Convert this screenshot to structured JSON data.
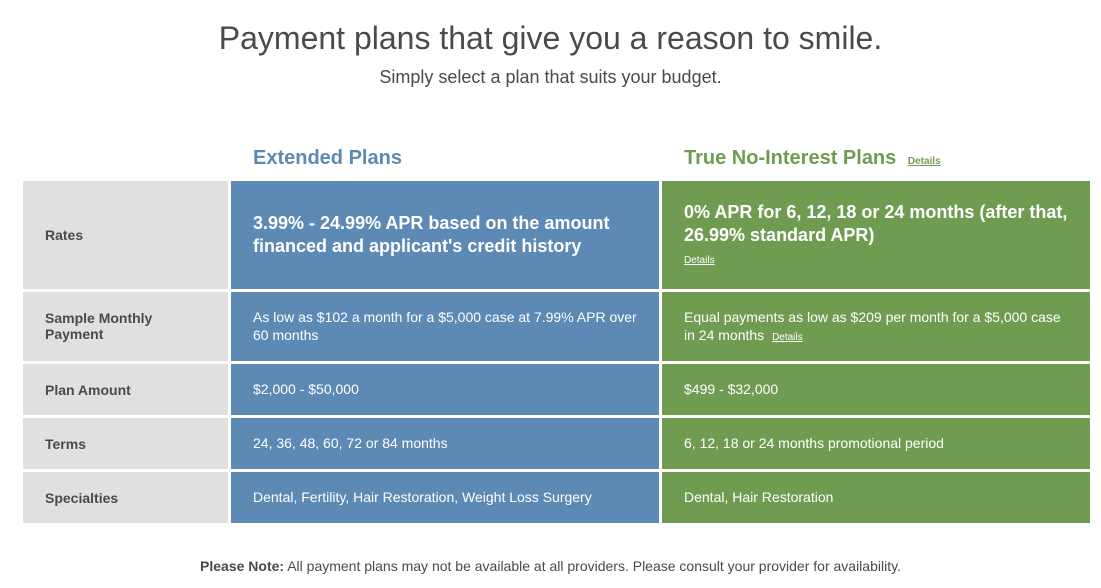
{
  "headline": "Payment plans that give you a reason to smile.",
  "subhead": "Simply select a plan that suits your budget.",
  "details_label": "Details",
  "columns": {
    "extended": {
      "title": "Extended Plans",
      "color": "#5D89B5"
    },
    "nointerest": {
      "title": "True No-Interest Plans",
      "color": "#709C52"
    }
  },
  "rows": {
    "rates": {
      "label": "Rates",
      "extended": "3.99% - 24.99% APR based on the amount financed and applicant's credit history",
      "nointerest": "0% APR for 6, 12, 18 or 24 months (after that, 26.99% standard APR)"
    },
    "sample": {
      "label": "Sample Monthly Payment",
      "extended": "As low as $102 a month for a $5,000 case at 7.99% APR over 60 months",
      "nointerest": "Equal payments as low as $209 per month for a $5,000 case in 24 months"
    },
    "amount": {
      "label": "Plan Amount",
      "extended": "$2,000 - $50,000",
      "nointerest": "$499 - $32,000"
    },
    "terms": {
      "label": "Terms",
      "extended": "24, 36, 48, 60, 72 or 84 months",
      "nointerest": "6, 12, 18 or 24 months promotional period"
    },
    "specialties": {
      "label": "Specialties",
      "extended": "Dental, Fertility, Hair Restoration, Weight Loss Surgery",
      "nointerest": "Dental, Hair Restoration"
    }
  },
  "footnote": {
    "bold": "Please Note:",
    "text": " All payment plans may not be available at all providers. Please consult your provider for availability."
  }
}
